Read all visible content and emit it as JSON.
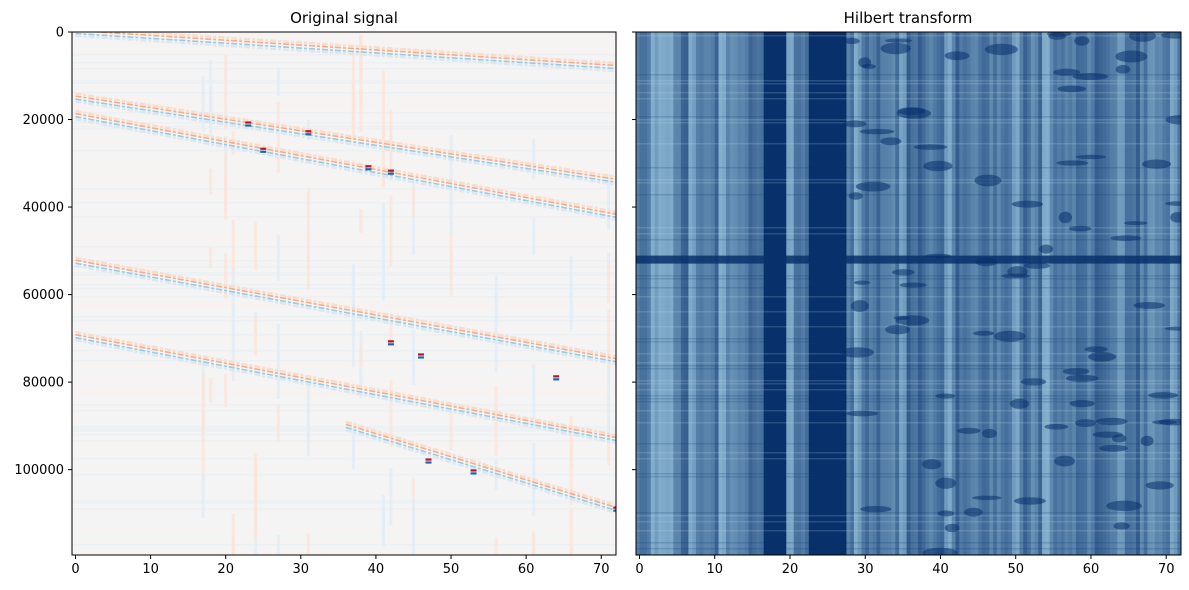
{
  "chart_data": [
    {
      "type": "heatmap",
      "title": "Original signal",
      "xlabel": "",
      "ylabel": "",
      "colormap": "RdBu_r",
      "xlim": [
        0,
        72
      ],
      "ylim": [
        120000,
        0
      ],
      "x_ticks": [
        0,
        10,
        20,
        30,
        40,
        50,
        60,
        70
      ],
      "y_ticks": [
        0,
        20000,
        40000,
        60000,
        80000,
        100000
      ],
      "x_tick_labels": [
        "0",
        "10",
        "20",
        "30",
        "40",
        "50",
        "60",
        "70"
      ],
      "y_tick_labels": [
        "0",
        "20000",
        "40000",
        "60000",
        "80000",
        "100000"
      ],
      "moveout_traces": [
        {
          "x_start": 0,
          "y_start": 15000,
          "x_end": 72,
          "y_end": 34000
        },
        {
          "x_start": 0,
          "y_start": 19000,
          "x_end": 72,
          "y_end": 42000
        },
        {
          "x_start": 0,
          "y_start": 52500,
          "x_end": 72,
          "y_end": 75000
        },
        {
          "x_start": 0,
          "y_start": 69500,
          "x_end": 72,
          "y_end": 93000
        },
        {
          "x_start": 36,
          "y_start": 90000,
          "x_end": 72,
          "y_end": 109000
        },
        {
          "x_start": 0,
          "y_start": 0,
          "x_end": 72,
          "y_end": 8000
        }
      ],
      "strongest_events": [
        {
          "x": 23,
          "y": 21000
        },
        {
          "x": 25,
          "y": 27000
        },
        {
          "x": 31,
          "y": 23000
        },
        {
          "x": 39,
          "y": 31000
        },
        {
          "x": 42,
          "y": 32000
        },
        {
          "x": 42,
          "y": 71000
        },
        {
          "x": 46,
          "y": 74000
        },
        {
          "x": 64,
          "y": 79000
        },
        {
          "x": 47,
          "y": 98000
        },
        {
          "x": 53,
          "y": 100500
        },
        {
          "x": 72,
          "y": 109000
        }
      ]
    },
    {
      "type": "heatmap",
      "title": "Hilbert transform",
      "xlabel": "",
      "ylabel": "",
      "colormap": "Blues",
      "xlim": [
        0,
        72
      ],
      "ylim": [
        120000,
        0
      ],
      "x_ticks": [
        0,
        10,
        20,
        30,
        40,
        50,
        60,
        70
      ],
      "x_tick_labels": [
        "0",
        "10",
        "20",
        "30",
        "40",
        "50",
        "60",
        "70"
      ],
      "y_tick_labels_shown": false,
      "dark_bands": [
        {
          "x_from": 16.5,
          "x_to": 19.5
        },
        {
          "x_from": 22.5,
          "x_to": 27.5
        }
      ],
      "light_columns": [
        2,
        3,
        4,
        7,
        11,
        20,
        29,
        35,
        41,
        50,
        54,
        64,
        71
      ],
      "horizontal_break_y": 52000
    }
  ]
}
